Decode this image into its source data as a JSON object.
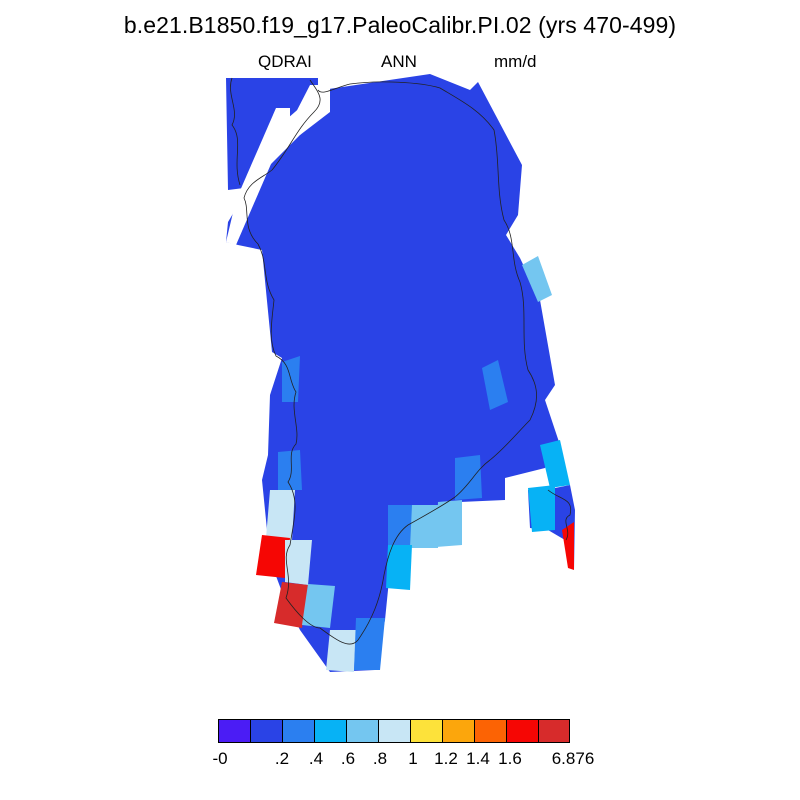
{
  "title": "b.e21.B1850.f19_g17.PaleoCalibr.PI.02 (yrs 470-499)",
  "subtitles": {
    "variable": "QDRAI",
    "season": "ANN",
    "units": "mm/d"
  },
  "colorbar": {
    "colors": [
      "#4b1cf5",
      "#2a43e6",
      "#2b7ff0",
      "#07b2f5",
      "#74c6f0",
      "#c8e6f5",
      "#fde23a",
      "#fca60c",
      "#fc6304",
      "#f60604",
      "#d72b2b"
    ],
    "labels": [
      "-0",
      ".2",
      ".4",
      ".6",
      ".8",
      "1",
      "1.2",
      "1.4",
      "1.6",
      "6.876"
    ]
  },
  "map": {
    "background_class": 1,
    "anomaly_cells": [
      {
        "label": "east coast light blue",
        "cls": 4
      },
      {
        "label": "east mid blue",
        "cls": 2
      },
      {
        "label": "west mid blue",
        "cls": 2
      },
      {
        "label": "southwest mid blue",
        "cls": 2
      },
      {
        "label": "southwest pale",
        "cls": 5
      },
      {
        "label": "southwest red",
        "cls": 9
      },
      {
        "label": "southwest pale 2",
        "cls": 5
      },
      {
        "label": "south dark red",
        "cls": 10
      },
      {
        "label": "south light blue",
        "cls": 4
      },
      {
        "label": "south tip pale",
        "cls": 5
      },
      {
        "label": "south tip blue",
        "cls": 2
      },
      {
        "label": "southeast blue a",
        "cls": 2
      },
      {
        "label": "southeast light blue",
        "cls": 4
      },
      {
        "label": "southeast cyan",
        "cls": 3
      },
      {
        "label": "southeast light blue 2",
        "cls": 4
      },
      {
        "label": "southeast mid blue",
        "cls": 2
      },
      {
        "label": "far east cyan a",
        "cls": 3
      },
      {
        "label": "far east cyan b",
        "cls": 3
      },
      {
        "label": "far east red",
        "cls": 9
      }
    ]
  }
}
